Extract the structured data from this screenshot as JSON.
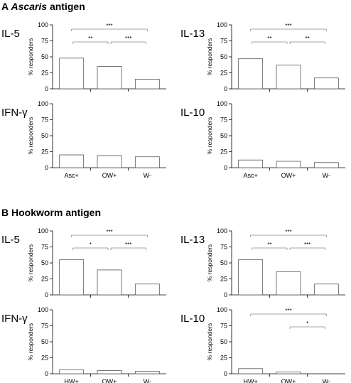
{
  "sections": [
    {
      "letter": "A",
      "label": "Ascaris",
      "suffix": " antigen"
    },
    {
      "letter": "B",
      "label": "Hookworm antigen",
      "suffix": ""
    }
  ],
  "chart_data": [
    {
      "type": "bar",
      "section": "A",
      "title": "IL-5",
      "ylabel": "% responders",
      "ylim": [
        0,
        100
      ],
      "yticks": [
        0,
        25,
        50,
        75,
        100
      ],
      "categories": [
        "Asc+",
        "OW+",
        "W-"
      ],
      "show_xlabels": false,
      "values": [
        48,
        35,
        15
      ],
      "significance": [
        {
          "from": 0,
          "to": 1,
          "label": "**"
        },
        {
          "from": 1,
          "to": 2,
          "label": "***"
        },
        {
          "from": 0,
          "to": 2,
          "label": "***"
        }
      ]
    },
    {
      "type": "bar",
      "section": "A",
      "title": "IL-13",
      "ylabel": "% responders",
      "ylim": [
        0,
        100
      ],
      "yticks": [
        0,
        25,
        50,
        75,
        100
      ],
      "categories": [
        "Asc+",
        "OW+",
        "W-"
      ],
      "show_xlabels": false,
      "values": [
        47,
        37,
        17
      ],
      "significance": [
        {
          "from": 0,
          "to": 1,
          "label": "**"
        },
        {
          "from": 1,
          "to": 2,
          "label": "**"
        },
        {
          "from": 0,
          "to": 2,
          "label": "***"
        }
      ]
    },
    {
      "type": "bar",
      "section": "A",
      "title": "IFN-γ",
      "ylabel": "% responders",
      "ylim": [
        0,
        100
      ],
      "yticks": [
        0,
        25,
        50,
        75,
        100
      ],
      "categories": [
        "Asc+",
        "OW+",
        "W-"
      ],
      "show_xlabels": true,
      "values": [
        20,
        19,
        17
      ],
      "significance": []
    },
    {
      "type": "bar",
      "section": "A",
      "title": "IL-10",
      "ylabel": "% responders",
      "ylim": [
        0,
        100
      ],
      "yticks": [
        0,
        25,
        50,
        75,
        100
      ],
      "categories": [
        "Asc+",
        "OW+",
        "W-"
      ],
      "show_xlabels": true,
      "values": [
        12,
        10,
        8
      ],
      "significance": []
    },
    {
      "type": "bar",
      "section": "B",
      "title": "IL-5",
      "ylabel": "% responders",
      "ylim": [
        0,
        100
      ],
      "yticks": [
        0,
        25,
        50,
        75,
        100
      ],
      "categories": [
        "HW+",
        "OW+",
        "W-"
      ],
      "show_xlabels": false,
      "values": [
        55,
        39,
        17
      ],
      "significance": [
        {
          "from": 0,
          "to": 1,
          "label": "*"
        },
        {
          "from": 1,
          "to": 2,
          "label": "***"
        },
        {
          "from": 0,
          "to": 2,
          "label": "***"
        }
      ]
    },
    {
      "type": "bar",
      "section": "B",
      "title": "IL-13",
      "ylabel": "% responders",
      "ylim": [
        0,
        100
      ],
      "yticks": [
        0,
        25,
        50,
        75,
        100
      ],
      "categories": [
        "HW+",
        "OW+",
        "W-"
      ],
      "show_xlabels": false,
      "values": [
        55,
        36,
        17
      ],
      "significance": [
        {
          "from": 0,
          "to": 1,
          "label": "**"
        },
        {
          "from": 1,
          "to": 2,
          "label": "***"
        },
        {
          "from": 0,
          "to": 2,
          "label": "***"
        }
      ]
    },
    {
      "type": "bar",
      "section": "B",
      "title": "IFN-γ",
      "ylabel": "% responders",
      "ylim": [
        0,
        100
      ],
      "yticks": [
        0,
        25,
        50,
        75,
        100
      ],
      "categories": [
        "HW+",
        "OW+",
        "W-"
      ],
      "show_xlabels": true,
      "values": [
        6,
        5,
        4
      ],
      "significance": []
    },
    {
      "type": "bar",
      "section": "B",
      "title": "IL-10",
      "ylabel": "% responders",
      "ylim": [
        0,
        100
      ],
      "yticks": [
        0,
        25,
        50,
        75,
        100
      ],
      "categories": [
        "HW+",
        "OW+",
        "W-"
      ],
      "show_xlabels": true,
      "values": [
        8,
        3,
        0
      ],
      "significance": [
        {
          "from": 1,
          "to": 2,
          "label": "*"
        },
        {
          "from": 0,
          "to": 2,
          "label": "***"
        }
      ]
    }
  ]
}
